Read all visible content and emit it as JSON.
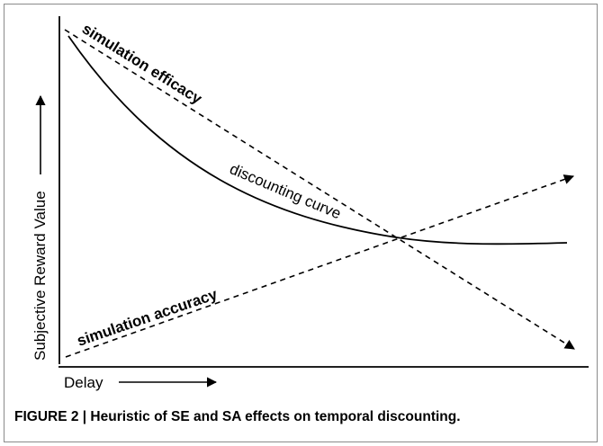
{
  "figure": {
    "axes": {
      "x_label": "Delay",
      "y_label": "Subjective Reward Value"
    },
    "curves": {
      "efficacy_label": "simulation efficacy",
      "discounting_label": "discounting curve",
      "accuracy_label": "simulation accuracy"
    },
    "caption": "FIGURE 2 | Heuristic of SE and SA effects on temporal discounting."
  },
  "colors": {
    "ink": "#000000",
    "frame": "#8a8a8a"
  }
}
